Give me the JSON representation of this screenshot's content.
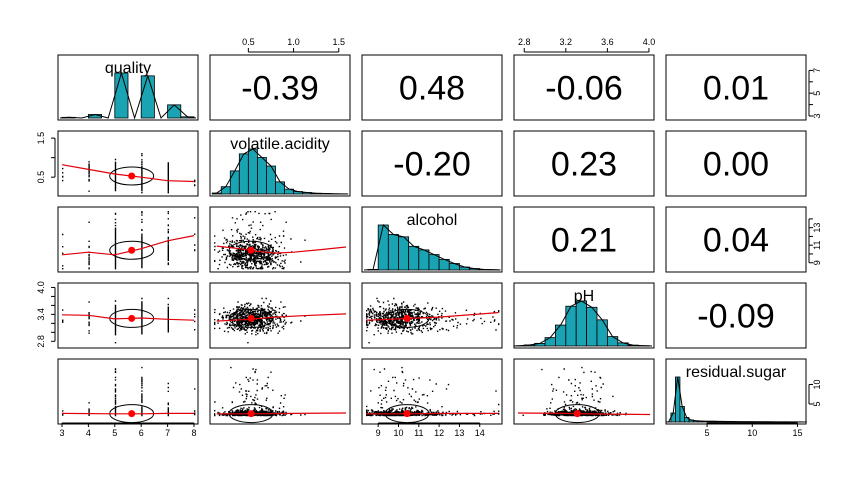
{
  "chart_data": {
    "type": "scatter-matrix",
    "variables": [
      "quality",
      "volatile.acidity",
      "alcohol",
      "pH",
      "residual.sugar"
    ],
    "ranges": [
      [
        3,
        8
      ],
      [
        0.12,
        1.58
      ],
      [
        8.4,
        14.9
      ],
      [
        2.74,
        4.01
      ],
      [
        0.9,
        15.5
      ]
    ],
    "ticks": [
      [
        3,
        4,
        5,
        6,
        7,
        8
      ],
      [
        0.5,
        1.0,
        1.5
      ],
      [
        9,
        10,
        11,
        12,
        13,
        14
      ],
      [
        2.8,
        3.2,
        3.6,
        4.0
      ],
      [
        5,
        10,
        15
      ]
    ],
    "tick_labels": [
      [
        "3",
        "4",
        "5",
        "6",
        "7",
        "8"
      ],
      [
        "0.5",
        "1.0",
        "1.5"
      ],
      [
        "9",
        "10",
        "11",
        "12",
        "13",
        "14"
      ],
      [
        "2.8",
        "3.2",
        "3.6",
        "4.0"
      ],
      [
        "5",
        "10",
        "15"
      ]
    ],
    "side_tick_labels": {
      "quality": [
        "3",
        "5",
        "7"
      ],
      "volatile.acidity": [
        "0.5",
        "1.5"
      ],
      "alcohol": [
        "9",
        "11",
        "13"
      ],
      "pH": [
        "2.8",
        "3.4",
        "4.0"
      ],
      "residual.sugar": [
        "5",
        "10"
      ]
    },
    "side_ticks": {
      "quality": [
        3,
        4,
        5,
        6,
        7
      ],
      "volatile.acidity": [
        0.5,
        1.0,
        1.5
      ],
      "alcohol": [
        9,
        10,
        11,
        12,
        13,
        14
      ],
      "pH": [
        2.8,
        3.0,
        3.2,
        3.4,
        3.6,
        3.8,
        4.0
      ],
      "residual.sugar": [
        5,
        10
      ]
    },
    "correlations": [
      {
        "row": 0,
        "col": 1,
        "label": "-0.39"
      },
      {
        "row": 0,
        "col": 2,
        "label": "0.48"
      },
      {
        "row": 0,
        "col": 3,
        "label": "-0.06"
      },
      {
        "row": 0,
        "col": 4,
        "label": "0.01"
      },
      {
        "row": 1,
        "col": 2,
        "label": "-0.20"
      },
      {
        "row": 1,
        "col": 3,
        "label": "0.23"
      },
      {
        "row": 1,
        "col": 4,
        "label": "0.00"
      },
      {
        "row": 2,
        "col": 3,
        "label": "0.21"
      },
      {
        "row": 2,
        "col": 4,
        "label": "0.04"
      },
      {
        "row": 3,
        "col": 4,
        "label": "-0.09"
      }
    ],
    "histograms": [
      {
        "variable": "quality",
        "bins": [
          3,
          3.5,
          4,
          4.5,
          5,
          5.5,
          6,
          6.5,
          7,
          7.5,
          8
        ],
        "counts": [
          10,
          0,
          53,
          0,
          681,
          0,
          638,
          0,
          199,
          18
        ]
      },
      {
        "variable": "volatile.acidity",
        "bins": [
          0.1,
          0.2,
          0.3,
          0.4,
          0.5,
          0.6,
          0.7,
          0.8,
          0.9,
          1.0,
          1.1,
          1.2,
          1.3,
          1.4,
          1.5,
          1.6
        ],
        "counts": [
          8,
          60,
          190,
          330,
          370,
          300,
          230,
          100,
          40,
          20,
          12,
          6,
          4,
          2,
          1
        ]
      },
      {
        "variable": "alcohol",
        "bins": [
          8.5,
          9,
          9.5,
          10,
          10.5,
          11,
          11.5,
          12,
          12.5,
          13,
          13.5,
          14,
          14.5,
          15
        ],
        "counts": [
          5,
          380,
          300,
          280,
          200,
          170,
          130,
          90,
          55,
          25,
          12,
          4,
          2
        ]
      },
      {
        "variable": "pH",
        "bins": [
          2.7,
          2.8,
          2.9,
          3.0,
          3.1,
          3.2,
          3.3,
          3.4,
          3.5,
          3.6,
          3.7,
          3.8,
          3.9,
          4.0
        ],
        "counts": [
          2,
          10,
          25,
          80,
          200,
          380,
          430,
          370,
          250,
          90,
          30,
          8,
          3
        ]
      },
      {
        "variable": "residual.sugar",
        "bins": [
          0.5,
          1,
          1.5,
          2,
          2.5,
          3,
          3.5,
          4,
          4.5,
          5,
          6,
          7,
          8,
          10,
          12,
          14,
          16
        ],
        "counts": [
          4,
          180,
          900,
          310,
          90,
          40,
          25,
          20,
          15,
          15,
          12,
          10,
          6,
          4,
          3,
          2
        ]
      }
    ],
    "means": [
      5.64,
      0.53,
      10.42,
      3.31,
      2.54
    ],
    "smoothers": [
      {
        "x": "quality",
        "y": "volatile.acidity",
        "points": [
          [
            3,
            0.82
          ],
          [
            4,
            0.7
          ],
          [
            5,
            0.58
          ],
          [
            6,
            0.5
          ],
          [
            7,
            0.41
          ],
          [
            8,
            0.39
          ]
        ]
      },
      {
        "x": "quality",
        "y": "alcohol",
        "points": [
          [
            3,
            9.9
          ],
          [
            4,
            10.2
          ],
          [
            5,
            9.9
          ],
          [
            6,
            10.6
          ],
          [
            7,
            11.5
          ],
          [
            8,
            12.1
          ]
        ]
      },
      {
        "x": "quality",
        "y": "pH",
        "points": [
          [
            3,
            3.39
          ],
          [
            4,
            3.38
          ],
          [
            5,
            3.3
          ],
          [
            6,
            3.32
          ],
          [
            7,
            3.29
          ],
          [
            8,
            3.27
          ]
        ]
      },
      {
        "x": "quality",
        "y": "residual.sugar",
        "points": [
          [
            3,
            2.6
          ],
          [
            5,
            2.5
          ],
          [
            6,
            2.5
          ],
          [
            7,
            2.6
          ],
          [
            8,
            2.6
          ]
        ]
      },
      {
        "x": "volatile.acidity",
        "y": "alcohol",
        "points": [
          [
            0.15,
            10.9
          ],
          [
            0.4,
            10.6
          ],
          [
            0.6,
            10.3
          ],
          [
            0.8,
            10.1
          ],
          [
            1.0,
            10.2
          ],
          [
            1.3,
            10.5
          ],
          [
            1.58,
            10.8
          ]
        ]
      },
      {
        "x": "volatile.acidity",
        "y": "pH",
        "points": [
          [
            0.15,
            3.25
          ],
          [
            0.5,
            3.29
          ],
          [
            0.8,
            3.34
          ],
          [
            1.1,
            3.37
          ],
          [
            1.58,
            3.41
          ]
        ]
      },
      {
        "x": "volatile.acidity",
        "y": "residual.sugar",
        "points": [
          [
            0.15,
            2.5
          ],
          [
            0.6,
            2.5
          ],
          [
            1.0,
            2.6
          ],
          [
            1.58,
            2.7
          ]
        ]
      },
      {
        "x": "alcohol",
        "y": "pH",
        "points": [
          [
            8.4,
            3.27
          ],
          [
            10,
            3.3
          ],
          [
            12,
            3.34
          ],
          [
            14.9,
            3.44
          ]
        ]
      },
      {
        "x": "alcohol",
        "y": "residual.sugar",
        "points": [
          [
            8.4,
            2.5
          ],
          [
            10.5,
            2.5
          ],
          [
            12.5,
            2.6
          ],
          [
            14.9,
            2.6
          ]
        ]
      },
      {
        "x": "pH",
        "y": "residual.sugar",
        "points": [
          [
            2.74,
            2.7
          ],
          [
            3.2,
            2.6
          ],
          [
            3.6,
            2.4
          ],
          [
            4.01,
            2.3
          ]
        ]
      }
    ]
  }
}
